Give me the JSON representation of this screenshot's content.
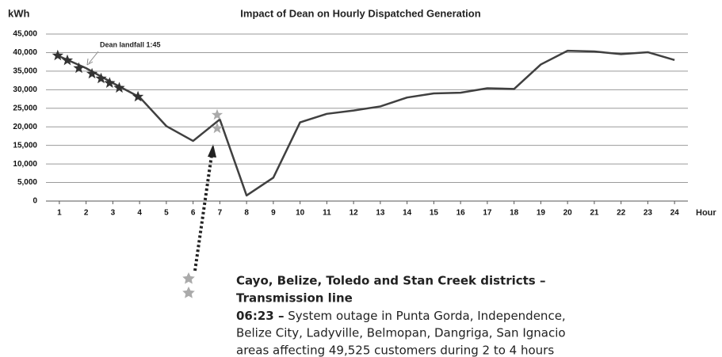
{
  "chart_data": {
    "type": "line",
    "title": "Impact of Dean on Hourly Dispatched Generation",
    "y_axis_label": "kWh",
    "x_axis_label": "Hour",
    "x": [
      1,
      2,
      3,
      4,
      5,
      6,
      7,
      8,
      9,
      10,
      11,
      12,
      13,
      14,
      15,
      16,
      17,
      18,
      19,
      20,
      21,
      22,
      23,
      24
    ],
    "xlim": [
      0.5,
      24.5
    ],
    "xticks": [
      1,
      2,
      3,
      4,
      5,
      6,
      7,
      8,
      9,
      10,
      11,
      12,
      13,
      14,
      15,
      16,
      17,
      18,
      19,
      20,
      21,
      22,
      23,
      24
    ],
    "values": [
      39000,
      35800,
      31800,
      28000,
      20200,
      16200,
      22000,
      1500,
      6300,
      21200,
      23500,
      24400,
      25500,
      27900,
      29000,
      29200,
      30400,
      30200,
      36800,
      40500,
      40300,
      39600,
      40100,
      38000
    ],
    "color": "#404040",
    "ylim": [
      0,
      45000
    ],
    "yticks": [
      0,
      {
        "value": 5000,
        "label": "5,000"
      },
      {
        "value": 10000,
        "label": "10,000"
      },
      {
        "value": 15000,
        "label": "15,000"
      },
      {
        "value": 20000,
        "label": "20,000"
      },
      {
        "value": 25000,
        "label": "25,000"
      },
      {
        "value": 30000,
        "label": "30,000"
      },
      {
        "value": 35000,
        "label": "35,000"
      },
      {
        "value": 40000,
        "label": "40,000"
      },
      {
        "value": 45000,
        "label": "45,000"
      }
    ],
    "grid": true,
    "dark_stars": {
      "x": [
        0.94,
        1.3,
        1.73,
        2.22,
        2.56,
        2.88,
        3.24,
        3.94
      ],
      "y": [
        39200,
        37900,
        35800,
        34300,
        33000,
        31800,
        30500,
        28100
      ],
      "color": "#333333"
    },
    "light_stars": {
      "x": [
        6.9,
        6.9
      ],
      "y": [
        23200,
        19600
      ],
      "color": "#aaaaaa"
    },
    "annotation": "Dean landfall 1:45",
    "note": {
      "heading": [
        "Cayo, Belize, Toledo and Stan Creek districts –",
        "Transmission  line"
      ],
      "time": "06:23 –",
      "lines": [
        " System outage in Punta Gorda, Independence,",
        "Belize City, Ladyville, Belmopan, Dangriga, San Ignacio",
        "areas affecting 49,525 customers during 2 to 4 hours"
      ]
    }
  }
}
